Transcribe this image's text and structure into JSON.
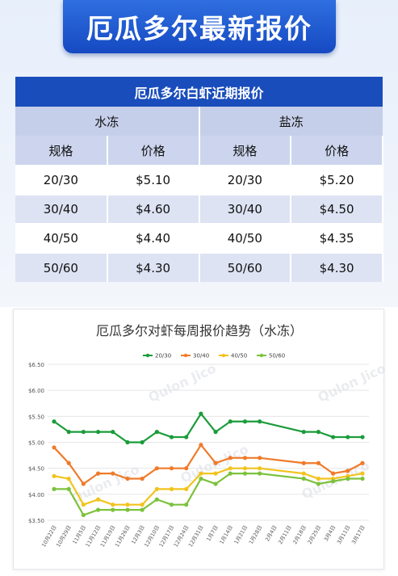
{
  "banner": {
    "title": "厄瓜多尔最新报价"
  },
  "price_table": {
    "title": "厄瓜多尔白虾近期报价",
    "groups": [
      "水冻",
      "盐冻"
    ],
    "headers": [
      "规格",
      "价格",
      "规格",
      "价格"
    ],
    "rows": [
      [
        "20/30",
        "$5.10",
        "20/30",
        "$5.20"
      ],
      [
        "30/40",
        "$4.60",
        "30/40",
        "$4.50"
      ],
      [
        "40/50",
        "$4.40",
        "40/50",
        "$4.35"
      ],
      [
        "50/60",
        "$4.30",
        "50/60",
        "$4.30"
      ]
    ]
  },
  "watermark": {
    "text": "Qulon Jico"
  },
  "chart_data": {
    "type": "line",
    "title": "厄瓜多尔对虾每周报价趋势（水冻）",
    "x": [
      "10月22日",
      "10月29日",
      "11月5日",
      "11月12日",
      "11月19日",
      "11月26日",
      "12月3日",
      "12月10日",
      "12月17日",
      "12月24日",
      "12月31日",
      "1月7日",
      "1月14日",
      "1月21日",
      "1月28日",
      "2月4日",
      "2月11日",
      "2月18日",
      "2月25日",
      "3月4日",
      "3月11日",
      "3月17日"
    ],
    "ylim": [
      3.5,
      6.5
    ],
    "yticks": [
      "$3.50",
      "$4.00",
      "$4.50",
      "$5.00",
      "$5.50",
      "$6.00",
      "$6.50"
    ],
    "grid": true,
    "legend_position": "top-center",
    "series": [
      {
        "name": "20/30",
        "color": "#1a9c3a",
        "values": [
          5.4,
          5.2,
          5.2,
          5.2,
          5.2,
          5.0,
          5.0,
          5.2,
          5.1,
          5.1,
          5.55,
          5.2,
          5.4,
          5.4,
          5.4,
          null,
          null,
          5.2,
          5.2,
          5.1,
          5.1,
          5.1
        ]
      },
      {
        "name": "30/40",
        "color": "#f07a2a",
        "values": [
          4.9,
          4.6,
          4.2,
          4.4,
          4.4,
          4.3,
          4.3,
          4.5,
          4.5,
          4.5,
          4.95,
          4.6,
          4.7,
          4.7,
          4.7,
          null,
          null,
          4.6,
          4.6,
          4.4,
          4.45,
          4.6
        ]
      },
      {
        "name": "40/50",
        "color": "#f2c31c",
        "values": [
          4.35,
          4.3,
          3.8,
          3.9,
          3.8,
          3.8,
          3.8,
          4.1,
          4.1,
          4.1,
          4.4,
          4.4,
          4.5,
          4.5,
          4.5,
          null,
          null,
          4.4,
          4.3,
          4.3,
          4.35,
          4.4
        ]
      },
      {
        "name": "50/60",
        "color": "#7cc23c",
        "values": [
          4.1,
          4.1,
          3.6,
          3.7,
          3.7,
          3.7,
          3.7,
          3.9,
          3.8,
          3.8,
          4.3,
          4.2,
          4.4,
          4.4,
          4.4,
          null,
          null,
          4.3,
          4.2,
          4.25,
          4.3,
          4.3
        ]
      }
    ]
  }
}
